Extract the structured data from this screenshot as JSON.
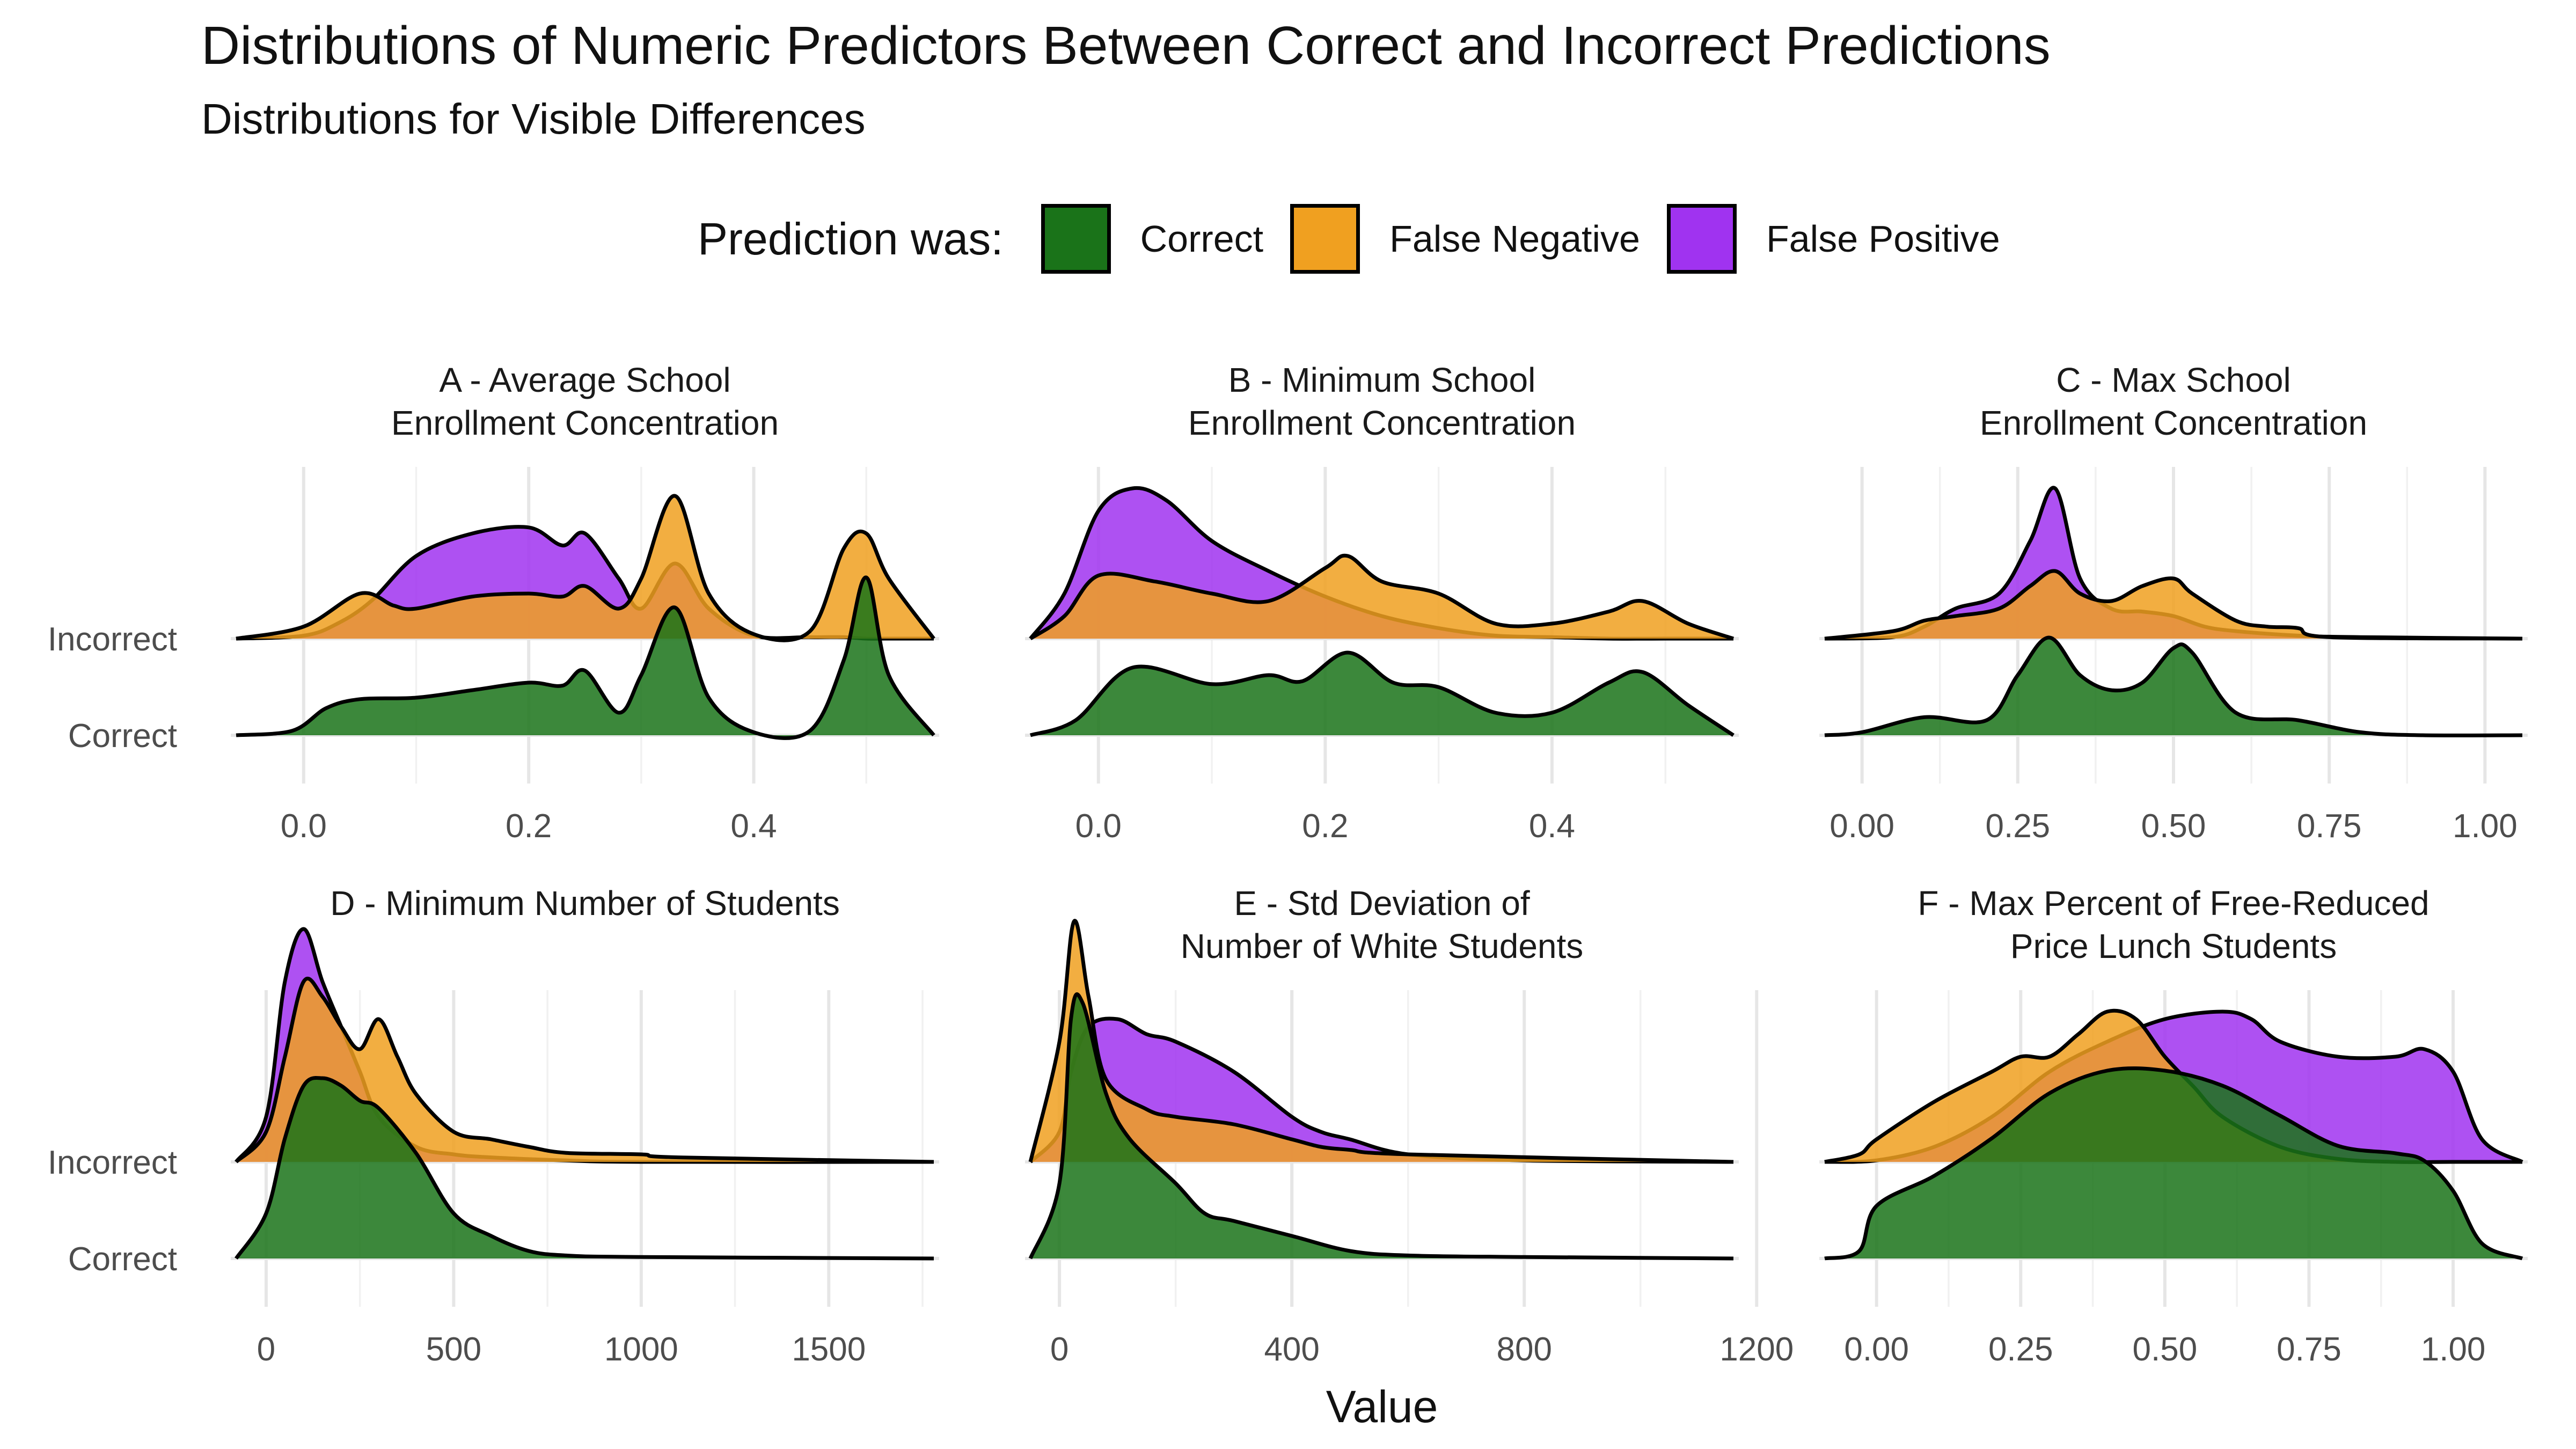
{
  "title": "Distributions of Numeric Predictors Between Correct and Incorrect Predictions",
  "subtitle": "Distributions for Visible Differences",
  "legend": {
    "title": "Prediction was:",
    "items": [
      {
        "label": "Correct",
        "color": "#1a7319"
      },
      {
        "label": "False Negative",
        "color": "#f0a020"
      },
      {
        "label": "False Positive",
        "color": "#a033f0"
      }
    ]
  },
  "chart_data": {
    "type": "area",
    "variant": "ridgeline",
    "xlabel": "Value",
    "ylabel": "",
    "y_categories": [
      "Correct",
      "Incorrect"
    ],
    "panels": [
      {
        "title": [
          "A - Average School",
          "Enrollment Concentration"
        ],
        "xlim": [
          -0.06,
          0.56
        ],
        "xticks": [
          0.0,
          0.2,
          0.4
        ],
        "tick_labels": [
          "0.0",
          "0.2",
          "0.4"
        ],
        "series": [
          {
            "name": "Correct",
            "row": "Correct",
            "x": [
              -0.06,
              -0.01,
              0.02,
              0.05,
              0.1,
              0.15,
              0.2,
              0.23,
              0.25,
              0.28,
              0.3,
              0.33,
              0.36,
              0.4,
              0.45,
              0.48,
              0.5,
              0.52,
              0.56
            ],
            "y": [
              0.0,
              0.03,
              0.18,
              0.24,
              0.25,
              0.3,
              0.35,
              0.33,
              0.43,
              0.15,
              0.4,
              0.85,
              0.25,
              0.02,
              0.03,
              0.5,
              1.05,
              0.4,
              0.0
            ]
          },
          {
            "name": "False Positive",
            "row": "Incorrect",
            "x": [
              -0.06,
              0.0,
              0.03,
              0.06,
              0.1,
              0.15,
              0.2,
              0.23,
              0.25,
              0.28,
              0.3,
              0.33,
              0.36,
              0.4,
              0.45,
              0.48,
              0.5,
              0.52,
              0.56
            ],
            "y": [
              0.0,
              0.02,
              0.1,
              0.25,
              0.55,
              0.7,
              0.74,
              0.62,
              0.7,
              0.4,
              0.2,
              0.5,
              0.2,
              0.02,
              0.01,
              0.01,
              0.0,
              0.0,
              0.0
            ]
          },
          {
            "name": "False Negative",
            "row": "Incorrect",
            "x": [
              -0.06,
              0.0,
              0.05,
              0.08,
              0.1,
              0.15,
              0.2,
              0.23,
              0.25,
              0.28,
              0.3,
              0.33,
              0.36,
              0.4,
              0.45,
              0.48,
              0.5,
              0.52,
              0.56
            ],
            "y": [
              0.0,
              0.08,
              0.3,
              0.22,
              0.2,
              0.28,
              0.3,
              0.28,
              0.35,
              0.2,
              0.4,
              0.95,
              0.3,
              0.03,
              0.05,
              0.6,
              0.7,
              0.4,
              0.0
            ]
          }
        ]
      },
      {
        "title": [
          "B - Minimum School",
          "Enrollment Concentration"
        ],
        "xlim": [
          -0.06,
          0.56
        ],
        "xticks": [
          0.0,
          0.2,
          0.4
        ],
        "tick_labels": [
          "0.0",
          "0.2",
          "0.4"
        ],
        "series": [
          {
            "name": "Correct",
            "row": "Correct",
            "x": [
              -0.06,
              -0.02,
              0.03,
              0.1,
              0.15,
              0.18,
              0.22,
              0.26,
              0.3,
              0.35,
              0.4,
              0.45,
              0.48,
              0.52,
              0.56
            ],
            "y": [
              0.0,
              0.1,
              0.45,
              0.34,
              0.4,
              0.36,
              0.55,
              0.35,
              0.32,
              0.15,
              0.15,
              0.35,
              0.42,
              0.2,
              0.0
            ]
          },
          {
            "name": "False Positive",
            "row": "Incorrect",
            "x": [
              -0.06,
              -0.03,
              0.0,
              0.03,
              0.06,
              0.1,
              0.15,
              0.2,
              0.25,
              0.3,
              0.35,
              0.4,
              0.45,
              0.5,
              0.56
            ],
            "y": [
              0.0,
              0.3,
              0.85,
              1.0,
              0.92,
              0.65,
              0.45,
              0.28,
              0.15,
              0.07,
              0.02,
              0.01,
              0.0,
              0.0,
              0.0
            ]
          },
          {
            "name": "False Negative",
            "row": "Incorrect",
            "x": [
              -0.06,
              -0.03,
              0.0,
              0.05,
              0.1,
              0.15,
              0.2,
              0.22,
              0.25,
              0.3,
              0.35,
              0.4,
              0.45,
              0.48,
              0.52,
              0.56
            ],
            "y": [
              0.0,
              0.15,
              0.42,
              0.38,
              0.3,
              0.25,
              0.47,
              0.55,
              0.38,
              0.3,
              0.1,
              0.1,
              0.18,
              0.25,
              0.1,
              0.0
            ]
          }
        ]
      },
      {
        "title": [
          "C - Max School",
          "Enrollment Concentration"
        ],
        "xlim": [
          -0.06,
          1.06
        ],
        "xticks": [
          0.0,
          0.25,
          0.5,
          0.75,
          1.0
        ],
        "tick_labels": [
          "0.00",
          "0.25",
          "0.50",
          "0.75",
          "1.00"
        ],
        "series": [
          {
            "name": "Correct",
            "row": "Correct",
            "x": [
              -0.06,
              0.0,
              0.1,
              0.2,
              0.25,
              0.3,
              0.35,
              0.4,
              0.45,
              0.5,
              0.53,
              0.6,
              0.7,
              0.8,
              0.9,
              1.06
            ],
            "y": [
              0.0,
              0.02,
              0.12,
              0.1,
              0.4,
              0.65,
              0.4,
              0.3,
              0.35,
              0.58,
              0.55,
              0.15,
              0.1,
              0.02,
              0.0,
              0.0
            ]
          },
          {
            "name": "False Positive",
            "row": "Incorrect",
            "x": [
              -0.06,
              0.05,
              0.1,
              0.15,
              0.22,
              0.27,
              0.31,
              0.35,
              0.4,
              0.45,
              0.5,
              0.55,
              0.6,
              0.7,
              0.8,
              1.06
            ],
            "y": [
              0.0,
              0.01,
              0.08,
              0.2,
              0.3,
              0.65,
              1.0,
              0.4,
              0.2,
              0.18,
              0.15,
              0.08,
              0.05,
              0.02,
              0.01,
              0.0
            ]
          },
          {
            "name": "False Negative",
            "row": "Incorrect",
            "x": [
              -0.06,
              0.05,
              0.1,
              0.15,
              0.22,
              0.27,
              0.31,
              0.35,
              0.4,
              0.45,
              0.5,
              0.53,
              0.6,
              0.65,
              0.7,
              0.75,
              1.06
            ],
            "y": [
              0.0,
              0.05,
              0.12,
              0.15,
              0.2,
              0.35,
              0.45,
              0.3,
              0.25,
              0.35,
              0.4,
              0.3,
              0.12,
              0.08,
              0.07,
              0.01,
              0.0
            ]
          }
        ]
      },
      {
        "title": [
          "D - Minimum Number of Students"
        ],
        "xlim": [
          -80,
          1780
        ],
        "xticks": [
          0,
          500,
          1000,
          1500
        ],
        "tick_labels": [
          "0",
          "500",
          "1000",
          "1500"
        ],
        "series": [
          {
            "name": "Correct",
            "row": "Correct",
            "x": [
              -80,
              0,
              50,
              100,
              150,
              200,
              250,
              300,
              400,
              500,
              600,
              700,
              800,
              1000,
              1780
            ],
            "y": [
              0.0,
              0.3,
              0.8,
              1.15,
              1.2,
              1.15,
              1.05,
              1.0,
              0.7,
              0.3,
              0.15,
              0.05,
              0.02,
              0.01,
              0.0
            ]
          },
          {
            "name": "False Positive",
            "row": "Incorrect",
            "x": [
              -80,
              0,
              50,
              100,
              150,
              200,
              250,
              300,
              400,
              500,
              600,
              800,
              1000,
              1780
            ],
            "y": [
              0.0,
              0.3,
              1.2,
              1.55,
              1.2,
              0.9,
              0.6,
              0.3,
              0.1,
              0.05,
              0.03,
              0.01,
              0.0,
              0.0
            ]
          },
          {
            "name": "False Negative",
            "row": "Incorrect",
            "x": [
              -80,
              0,
              50,
              100,
              150,
              200,
              250,
              300,
              350,
              400,
              500,
              600,
              700,
              800,
              1000,
              1100,
              1780
            ],
            "y": [
              0.0,
              0.2,
              0.7,
              1.2,
              1.1,
              0.9,
              0.75,
              0.95,
              0.7,
              0.45,
              0.2,
              0.15,
              0.1,
              0.06,
              0.05,
              0.03,
              0.0
            ]
          }
        ]
      },
      {
        "title": [
          "E - Std Deviation of",
          "Number of White Students"
        ],
        "xlim": [
          -50,
          1160
        ],
        "xticks": [
          0,
          400,
          800,
          1200
        ],
        "tick_labels": [
          "0",
          "400",
          "800",
          "1200"
        ],
        "series": [
          {
            "name": "Correct",
            "row": "Correct",
            "x": [
              -50,
              0,
              20,
              40,
              80,
              120,
              200,
              250,
              300,
              400,
              500,
              600,
              800,
              1160
            ],
            "y": [
              0.0,
              0.5,
              1.6,
              1.7,
              1.1,
              0.8,
              0.5,
              0.3,
              0.25,
              0.15,
              0.05,
              0.02,
              0.01,
              0.0
            ]
          },
          {
            "name": "False Positive",
            "row": "Incorrect",
            "x": [
              -50,
              0,
              20,
              50,
              100,
              150,
              200,
              300,
              400,
              450,
              500,
              600,
              800,
              1160
            ],
            "y": [
              0.0,
              0.2,
              0.6,
              0.9,
              0.95,
              0.85,
              0.8,
              0.6,
              0.3,
              0.2,
              0.15,
              0.05,
              0.01,
              0.0
            ]
          },
          {
            "name": "False Negative",
            "row": "Incorrect",
            "x": [
              -50,
              0,
              25,
              50,
              80,
              150,
              200,
              300,
              400,
              450,
              500,
              600,
              1160
            ],
            "y": [
              0.0,
              0.8,
              1.6,
              1.1,
              0.55,
              0.35,
              0.3,
              0.25,
              0.15,
              0.1,
              0.08,
              0.05,
              0.0
            ]
          }
        ]
      },
      {
        "title": [
          "F - Max Percent of Free-Reduced",
          "Price Lunch Students"
        ],
        "xlim": [
          -0.09,
          1.12
        ],
        "xticks": [
          0.0,
          0.25,
          0.5,
          0.75,
          1.0
        ],
        "tick_labels": [
          "0.00",
          "0.25",
          "0.50",
          "0.75",
          "1.00"
        ],
        "series": [
          {
            "name": "Correct",
            "row": "Correct",
            "x": [
              -0.09,
              -0.03,
              0.0,
              0.1,
              0.2,
              0.3,
              0.4,
              0.5,
              0.6,
              0.7,
              0.8,
              0.9,
              0.95,
              1.0,
              1.05,
              1.12
            ],
            "y": [
              0.0,
              0.05,
              0.35,
              0.55,
              0.8,
              1.1,
              1.25,
              1.25,
              1.15,
              0.95,
              0.75,
              0.7,
              0.65,
              0.45,
              0.1,
              0.0
            ]
          },
          {
            "name": "False Positive",
            "row": "Incorrect",
            "x": [
              -0.09,
              0.0,
              0.1,
              0.2,
              0.3,
              0.4,
              0.5,
              0.6,
              0.65,
              0.7,
              0.8,
              0.9,
              0.95,
              1.0,
              1.05,
              1.12
            ],
            "y": [
              0.0,
              0.01,
              0.1,
              0.3,
              0.6,
              0.8,
              0.95,
              1.0,
              0.95,
              0.8,
              0.7,
              0.7,
              0.75,
              0.6,
              0.15,
              0.0
            ]
          },
          {
            "name": "False Negative",
            "row": "Incorrect",
            "x": [
              -0.09,
              -0.03,
              0.0,
              0.1,
              0.2,
              0.25,
              0.3,
              0.35,
              0.4,
              0.45,
              0.5,
              0.55,
              0.6,
              0.7,
              0.8,
              0.9,
              1.0,
              1.12
            ],
            "y": [
              0.0,
              0.05,
              0.15,
              0.4,
              0.6,
              0.7,
              0.7,
              0.85,
              1.0,
              0.95,
              0.7,
              0.5,
              0.3,
              0.1,
              0.02,
              0.0,
              0.0,
              0.0
            ]
          }
        ]
      }
    ]
  }
}
